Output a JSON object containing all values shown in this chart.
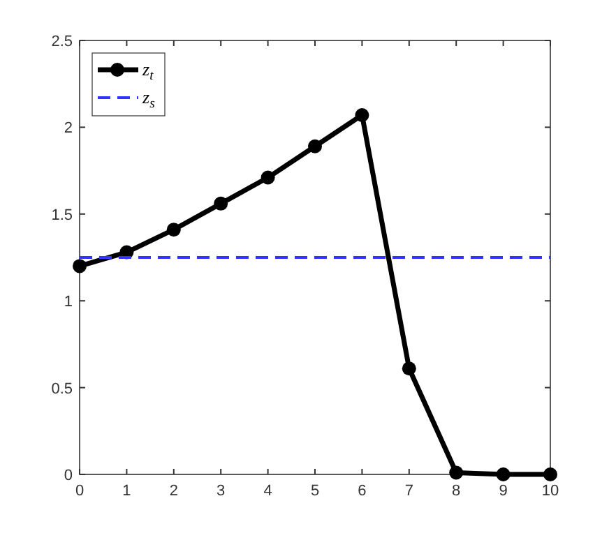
{
  "chart_data": {
    "type": "line",
    "x": [
      0,
      1,
      2,
      3,
      4,
      5,
      6,
      7,
      8,
      9,
      10
    ],
    "series": [
      {
        "name": "z$_{t}$",
        "color": "#000000",
        "values": [
          1.2,
          1.28,
          1.41,
          1.56,
          1.71,
          1.89,
          2.07,
          0.61,
          0.01,
          0,
          0
        ],
        "marker": "circle",
        "line_style": "solid"
      },
      {
        "name": "z$_{s}$",
        "color": "#3333ff",
        "x": [
          0,
          10
        ],
        "values": [
          1.25,
          1.25
        ],
        "marker": "none",
        "line_style": "dashed"
      }
    ],
    "xlim": [
      0,
      10
    ],
    "xticks": [
      0,
      1,
      2,
      3,
      4,
      5,
      6,
      7,
      8,
      9,
      10
    ],
    "ylim": [
      0,
      2.5
    ],
    "yticks": [
      0,
      0.5,
      1,
      1.5,
      2,
      2.5
    ],
    "grid": false,
    "legend": "top left"
  }
}
